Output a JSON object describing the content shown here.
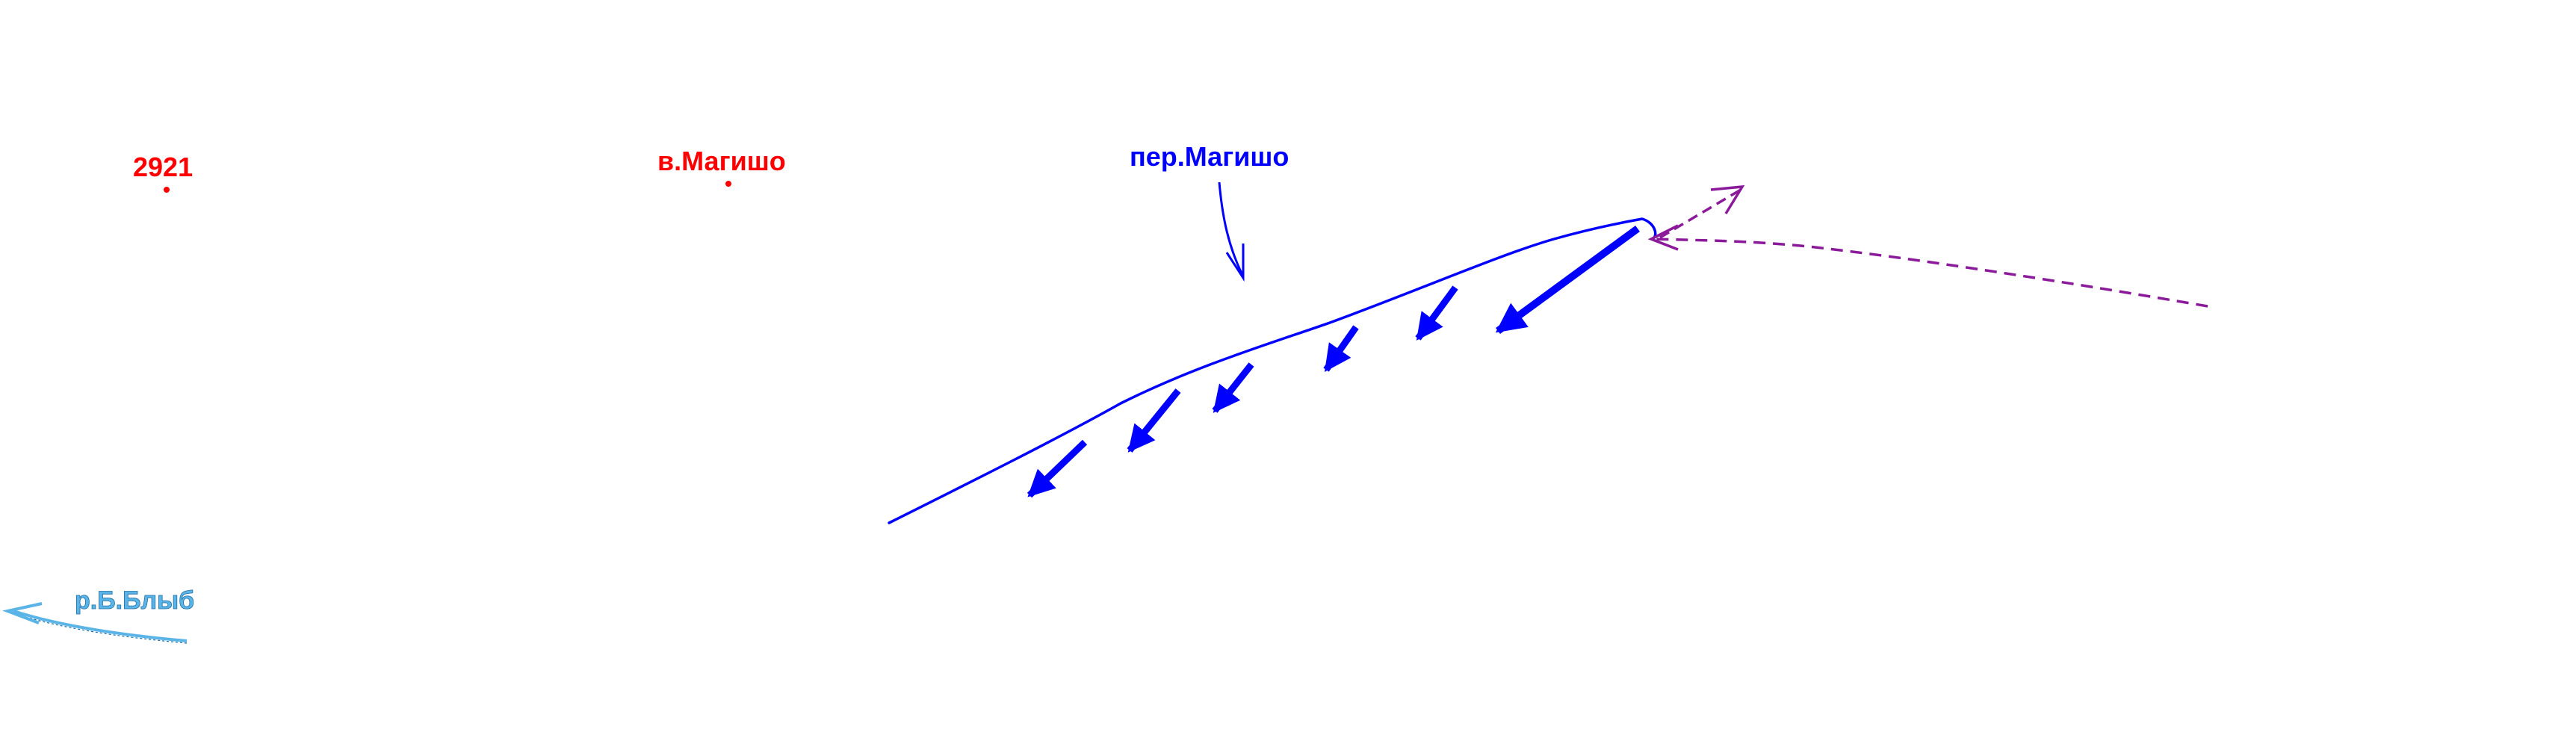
{
  "map": {
    "peak_elevation": {
      "label": "2921",
      "color": "#ff0000"
    },
    "summit": {
      "label": "в.Магишо",
      "color": "#ff0000"
    },
    "pass": {
      "label": "пер.Магишо",
      "color": "#0000ff"
    },
    "river": {
      "label": "р.Б.Блыб",
      "color": "#5ab4e6"
    },
    "route": {
      "color": "#0000ff"
    },
    "dashed_route": {
      "color": "#8b1a9b"
    }
  }
}
